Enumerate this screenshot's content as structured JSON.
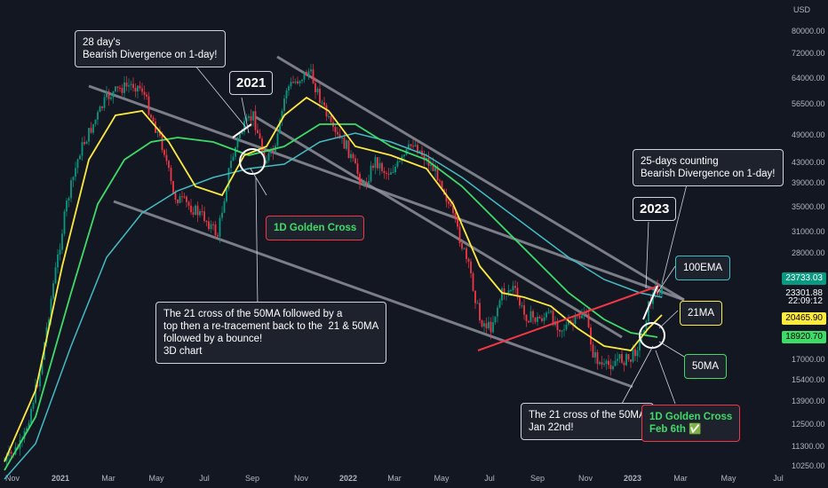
{
  "chart_data": {
    "type": "candlestick",
    "currency": "USD",
    "yscale": "log",
    "ylim": [
      10250,
      95000
    ],
    "y_ticks": [
      "80000.00",
      "72000.00",
      "64000.00",
      "56500.00",
      "49000.00",
      "43000.00",
      "39000.00",
      "35000.00",
      "31000.00",
      "28000.00",
      "23733.03",
      "23301.88",
      "22:09:12",
      "20465.90",
      "18920.70",
      "17000.00",
      "15400.00",
      "13900.00",
      "12500.00",
      "11300.00",
      "10250.00"
    ],
    "x_ticks": [
      "Nov",
      "2021",
      "Mar",
      "May",
      "Jul",
      "Sep",
      "Nov",
      "2022",
      "Mar",
      "May",
      "Jul",
      "Sep",
      "Nov",
      "2023",
      "Mar",
      "May",
      "Jul"
    ],
    "series": [
      {
        "name": "21MA",
        "color": "#ffeb3b"
      },
      {
        "name": "50MA",
        "color": "#3ddc68"
      },
      {
        "name": "100EMA",
        "color": "#42bdc6"
      }
    ],
    "price_tags": [
      {
        "text": "23733.03",
        "bg": "#089981",
        "fg": "#ffffff"
      },
      {
        "text": "23301.88",
        "bg": "#131722",
        "fg": "#ffffff"
      },
      {
        "text": "22:09:12",
        "bg": "#131722",
        "fg": "#ffffff"
      },
      {
        "text": "20465.90",
        "bg": "#ffeb3b",
        "fg": "#000000"
      },
      {
        "text": "18920.70",
        "bg": "#3ddc68",
        "fg": "#000000"
      }
    ]
  },
  "annotations": {
    "bearish_div_2021": "28 day's\nBearish Divergence on 1-day!",
    "year_2021": "2021",
    "golden_cross_1d": "1D Golden Cross",
    "cross_21_50_2021": "The 21 cross of the 50MA followed by a\ntop then a re-tracement back to the  21 & 50MA\nfollowed by a bounce!\n3D chart",
    "bearish_div_2023": "25-days counting\nBearish Divergence on 1-day!",
    "year_2023": "2023",
    "label_100ema": "100EMA",
    "label_21ma": "21MA",
    "label_50ma": "50MA",
    "cross_21_50_2023": "The 21 cross of the 50MA\nJan 22nd!",
    "golden_cross_feb": "1D Golden Cross\nFeb 6th ✅"
  }
}
